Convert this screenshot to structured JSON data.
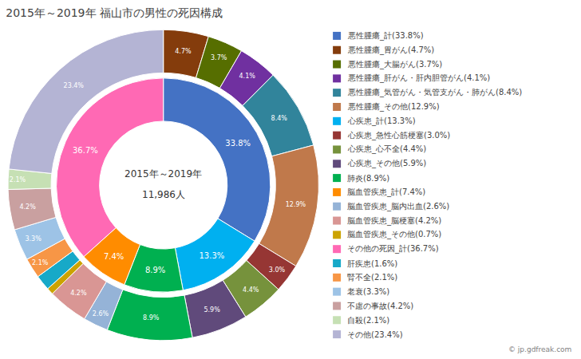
{
  "chart_data": {
    "type": "pie",
    "title": "2015年～2019年 福山市の男性の死因構成",
    "center_text": [
      "2015年～2019年",
      "11,986人"
    ],
    "annotations": [
      "© jp.gdfreak.com"
    ],
    "data_labels": true,
    "legend": "right",
    "series": [
      {
        "categories": [
          "悪性腫瘍_計(33.8%)",
          "心疾患_計(13.3%)",
          "肺炎(8.9%)",
          "脳血管疾患_計(7.4%)",
          "その他の死因_計(36.7%)"
        ],
        "values": [
          33.8,
          13.3,
          8.9,
          7.4,
          36.7
        ],
        "colors": [
          "#4472C4",
          "#00B0F0",
          "#00B050",
          "#FF8C00",
          "#FF69B4"
        ],
        "value_labels": [
          "33.8%",
          "13.3%",
          "8.9%",
          "7.4%",
          "36.7%"
        ]
      },
      {
        "categories": [
          "悪性腫瘍_胃がん(4.7%)",
          "悪性腫瘍_大腸がん(3.7%)",
          "悪性腫瘍_肝がん・肝内胆管がん(4.1%)",
          "悪性腫瘍_気管がん・気管支がん・肺がん(8.4%)",
          "悪性腫瘍_その他(12.9%)",
          "心疾患_急性心筋梗塞(3.0%)",
          "心疾患_心不全(4.4%)",
          "心疾患_その他(5.9%)",
          "肺炎(8.9%)",
          "脳血管疾患_脳内出血(2.6%)",
          "脳血管疾患_脳梗塞(4.2%)",
          "脳血管疾患_その他(0.7%)",
          "肝疾患(1.6%)",
          "腎不全(2.1%)",
          "老衰(3.3%)",
          "不慮の事故(4.2%)",
          "自殺(2.1%)",
          "その他(23.4%)"
        ],
        "values": [
          4.7,
          3.7,
          4.1,
          8.4,
          12.9,
          3.0,
          4.4,
          5.9,
          8.9,
          2.6,
          4.2,
          0.7,
          1.6,
          2.1,
          3.3,
          4.2,
          2.1,
          23.4
        ],
        "colors": [
          "#843C0C",
          "#566E00",
          "#7030A0",
          "#31849B",
          "#C0794B",
          "#963634",
          "#76923C",
          "#604A7B",
          "#00B050",
          "#95B3D7",
          "#D99694",
          "#CCA300",
          "#17A9C8",
          "#F79646",
          "#9DC3E6",
          "#C9A0A0",
          "#C6E0B4",
          "#B4B4D4"
        ],
        "value_labels": [
          "4.7%",
          "3.7%",
          "4.1%",
          "8.4%",
          "12.9%",
          "3.0%",
          "4.4%",
          "5.9%",
          "8.9%",
          "2.6%",
          "4.2%",
          null,
          null,
          "2.1%",
          "3.3%",
          "4.2%",
          "2.1%",
          "23.4%"
        ]
      }
    ],
    "legend_entries": [
      {
        "label": "悪性腫瘍_計(33.8%)",
        "color": "#4472C4"
      },
      {
        "label": "悪性腫瘍_胃がん(4.7%)",
        "color": "#843C0C"
      },
      {
        "label": "悪性腫瘍_大腸がん(3.7%)",
        "color": "#566E00"
      },
      {
        "label": "悪性腫瘍_肝がん・肝内胆管がん(4.1%)",
        "color": "#7030A0"
      },
      {
        "label": "悪性腫瘍_気管がん・気管支がん・肺がん(8.4%)",
        "color": "#31849B"
      },
      {
        "label": "悪性腫瘍_その他(12.9%)",
        "color": "#C0794B"
      },
      {
        "label": "心疾患_計(13.3%)",
        "color": "#00B0F0"
      },
      {
        "label": "心疾患_急性心筋梗塞(3.0%)",
        "color": "#963634"
      },
      {
        "label": "心疾患_心不全(4.4%)",
        "color": "#76923C"
      },
      {
        "label": "心疾患_その他(5.9%)",
        "color": "#604A7B"
      },
      {
        "label": "肺炎(8.9%)",
        "color": "#00B050"
      },
      {
        "label": "脳血管疾患_計(7.4%)",
        "color": "#FF8C00"
      },
      {
        "label": "脳血管疾患_脳内出血(2.6%)",
        "color": "#95B3D7"
      },
      {
        "label": "脳血管疾患_脳梗塞(4.2%)",
        "color": "#D99694"
      },
      {
        "label": "脳血管疾患_その他(0.7%)",
        "color": "#CCA300"
      },
      {
        "label": "その他の死因_計(36.7%)",
        "color": "#FF69B4"
      },
      {
        "label": "肝疾患(1.6%)",
        "color": "#17A9C8"
      },
      {
        "label": "腎不全(2.1%)",
        "color": "#F79646"
      },
      {
        "label": "老衰(3.3%)",
        "color": "#9DC3E6"
      },
      {
        "label": "不慮の事故(4.2%)",
        "color": "#C9A0A0"
      },
      {
        "label": "自殺(2.1%)",
        "color": "#C6E0B4"
      },
      {
        "label": "その他(23.4%)",
        "color": "#B4B4D4"
      }
    ]
  }
}
